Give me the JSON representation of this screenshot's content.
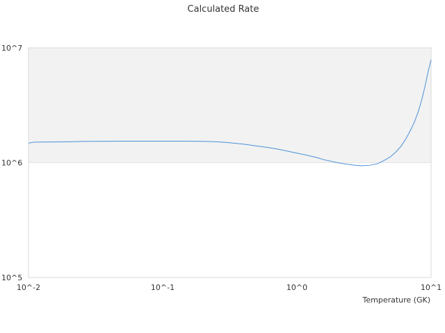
{
  "chart_data": {
    "type": "line",
    "title": "Calculated Rate",
    "xlabel": "Temperature (GK)",
    "ylabel": "",
    "x_scale": "log",
    "y_scale": "log",
    "xlim": [
      0.01,
      10
    ],
    "ylim": [
      100000,
      10000000
    ],
    "x_ticks": [
      {
        "value": 0.01,
        "label": "10^-2"
      },
      {
        "value": 0.1,
        "label": "10^-1"
      },
      {
        "value": 1,
        "label": "10^0"
      },
      {
        "value": 10,
        "label": "10^1"
      }
    ],
    "y_ticks": [
      {
        "value": 100000,
        "label": "10^5"
      },
      {
        "value": 1000000,
        "label": "10^6"
      },
      {
        "value": 10000000,
        "label": "10^7"
      }
    ],
    "grid": false,
    "band": {
      "from": 1000000,
      "to": 10000000,
      "color": "#f2f2f2"
    },
    "colors": {
      "line": "#4a90d9",
      "frame": "#d9d9d9",
      "text": "#333333"
    },
    "series": [
      {
        "values": [
          [
            0.01,
            1480000
          ],
          [
            0.011,
            1510000
          ],
          [
            0.015,
            1515000
          ],
          [
            0.02,
            1520000
          ],
          [
            0.025,
            1530000
          ],
          [
            0.03,
            1535000
          ],
          [
            0.05,
            1540000
          ],
          [
            0.1,
            1540000
          ],
          [
            0.15,
            1540000
          ],
          [
            0.2,
            1535000
          ],
          [
            0.25,
            1520000
          ],
          [
            0.3,
            1500000
          ],
          [
            0.4,
            1450000
          ],
          [
            0.5,
            1400000
          ],
          [
            0.6,
            1360000
          ],
          [
            0.7,
            1320000
          ],
          [
            0.8,
            1280000
          ],
          [
            1.0,
            1210000
          ],
          [
            1.2,
            1160000
          ],
          [
            1.4,
            1110000
          ],
          [
            1.6,
            1060000
          ],
          [
            2.0,
            1000000
          ],
          [
            2.5,
            960000
          ],
          [
            3.0,
            940000
          ],
          [
            3.5,
            950000
          ],
          [
            4.0,
            980000
          ],
          [
            4.5,
            1050000
          ],
          [
            5.0,
            1130000
          ],
          [
            5.5,
            1250000
          ],
          [
            6.0,
            1400000
          ],
          [
            6.5,
            1620000
          ],
          [
            7.0,
            1900000
          ],
          [
            7.5,
            2250000
          ],
          [
            8.0,
            2750000
          ],
          [
            8.5,
            3500000
          ],
          [
            9.0,
            4600000
          ],
          [
            9.5,
            6200000
          ],
          [
            10.0,
            7900000
          ]
        ]
      }
    ]
  }
}
